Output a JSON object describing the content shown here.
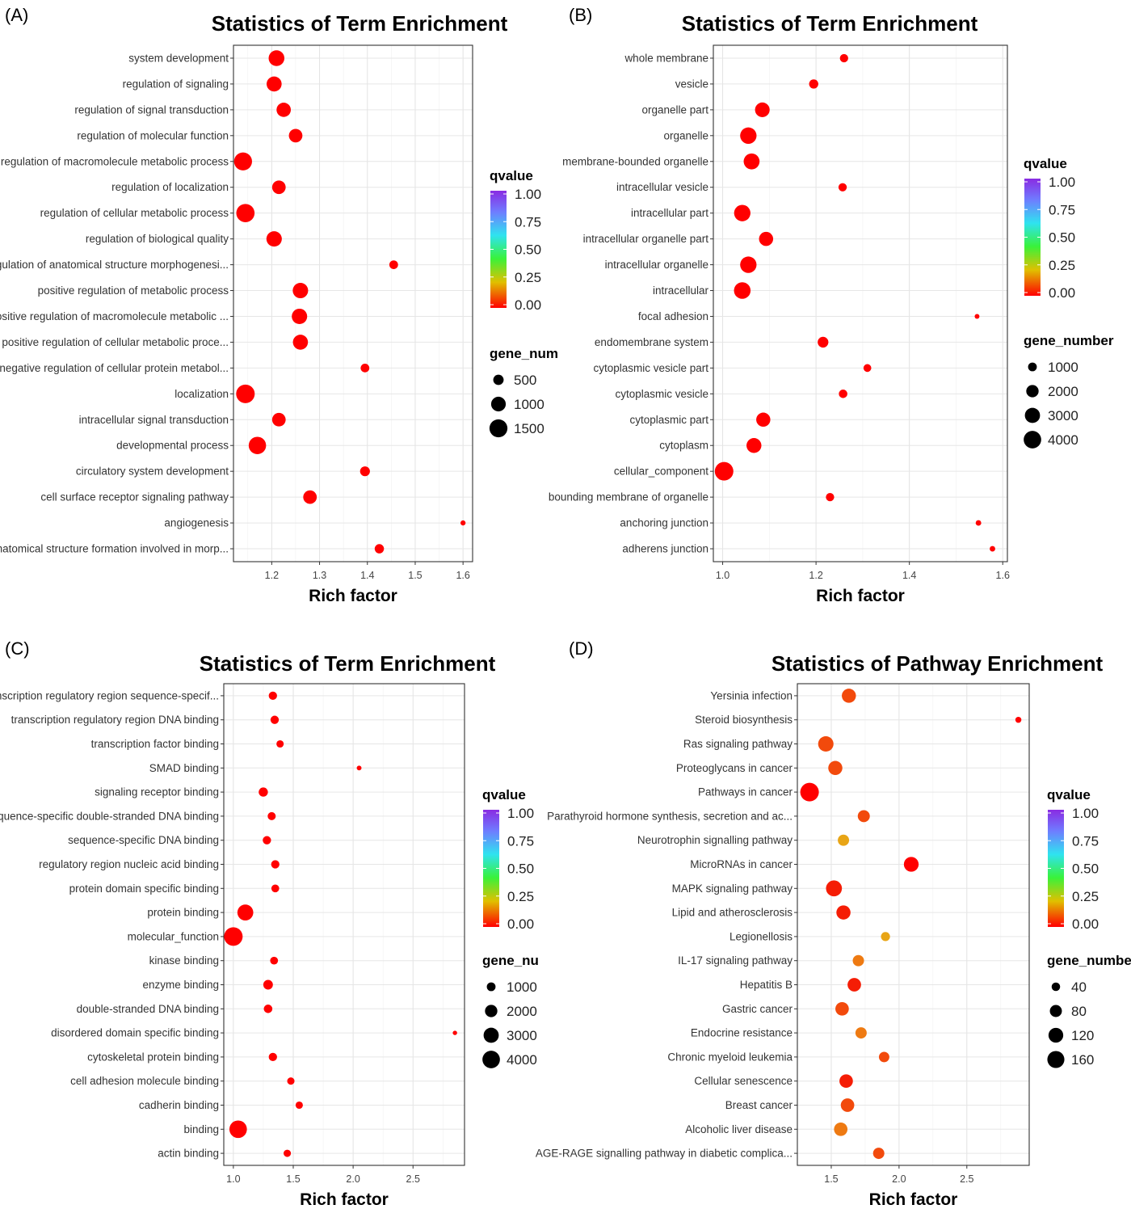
{
  "panels": [
    {
      "label": "(A)",
      "legend_q_title": "qvalue",
      "legend_g_title": "gene_num",
      "chart_data": {
        "type": "scatter",
        "title": "Statistics of Term Enrichment",
        "xlabel": "Rich factor",
        "ylabel": "",
        "xlim": [
          1.12,
          1.62
        ],
        "xticks": [
          1.2,
          1.3,
          1.4,
          1.5,
          1.6
        ],
        "categories": [
          "system development",
          "regulation of signaling",
          "regulation of signal transduction",
          "regulation of molecular function",
          "regulation of macromolecule metabolic process",
          "regulation of localization",
          "regulation of cellular metabolic process",
          "regulation of biological quality",
          "regulation of anatomical structure morphogenesi...",
          "positive regulation of metabolic process",
          "positive regulation of macromolecule metabolic ...",
          "positive regulation of cellular metabolic proce...",
          "negative regulation of cellular protein metabol...",
          "localization",
          "intracellular signal transduction",
          "developmental process",
          "circulatory system development",
          "cell surface receptor signaling pathway",
          "angiogenesis",
          "anatomical structure formation involved in morp..."
        ],
        "x": [
          1.21,
          1.205,
          1.225,
          1.25,
          1.14,
          1.215,
          1.145,
          1.205,
          1.455,
          1.26,
          1.258,
          1.26,
          1.395,
          1.145,
          1.215,
          1.17,
          1.395,
          1.28,
          1.6,
          1.425
        ],
        "gene_number": [
          1150,
          1050,
          950,
          850,
          1500,
          850,
          1550,
          1100,
          350,
          1100,
          1100,
          1050,
          350,
          1600,
          850,
          1400,
          450,
          850,
          120,
          400
        ],
        "qvalue": [
          0,
          0,
          0,
          0,
          0,
          0,
          0,
          0,
          0,
          0,
          0,
          0,
          0,
          0,
          0,
          0,
          0,
          0,
          0,
          0
        ],
        "qvalue_ticks": [
          "1.00",
          "0.75",
          "0.50",
          "0.25",
          "0.00"
        ],
        "gene_ticks": [
          "500",
          "1000",
          "1500"
        ],
        "gene_tick_values": [
          500,
          1000,
          1500
        ],
        "grid": true
      }
    },
    {
      "label": "(B)",
      "legend_q_title": "qvalue",
      "legend_g_title": "gene_number",
      "chart_data": {
        "type": "scatter",
        "title": "Statistics of Term Enrichment",
        "xlabel": "Rich factor",
        "ylabel": "",
        "xlim": [
          0.98,
          1.61
        ],
        "xticks": [
          1.0,
          1.2,
          1.4,
          1.6
        ],
        "xtick_labels": [
          "1.0",
          "1.2",
          "1.4",
          "1.6"
        ],
        "categories": [
          "whole membrane",
          "vesicle",
          "organelle part",
          "organelle",
          "membrane-bounded organelle",
          "intracellular vesicle",
          "intracellular part",
          "intracellular organelle part",
          "intracellular organelle",
          "intracellular",
          "focal adhesion",
          "endomembrane system",
          "cytoplasmic vesicle part",
          "cytoplasmic vesicle",
          "cytoplasmic part",
          "cytoplasm",
          "cellular_component",
          "bounding membrane of organelle",
          "anchoring junction",
          "adherens junction"
        ],
        "x": [
          1.26,
          1.195,
          1.085,
          1.055,
          1.062,
          1.257,
          1.042,
          1.093,
          1.055,
          1.042,
          1.545,
          1.215,
          1.31,
          1.258,
          1.087,
          1.067,
          1.003,
          1.23,
          1.548,
          1.578
        ],
        "gene_number": [
          900,
          1100,
          2800,
          3500,
          3300,
          900,
          3500,
          2600,
          3500,
          3600,
          300,
          1500,
          800,
          950,
          2600,
          2900,
          4500,
          900,
          400,
          400
        ],
        "qvalue": [
          0,
          0,
          0,
          0,
          0,
          0,
          0,
          0,
          0,
          0,
          0,
          0,
          0,
          0,
          0,
          0,
          0,
          0,
          0,
          0
        ],
        "qvalue_ticks": [
          "1.00",
          "0.75",
          "0.50",
          "0.25",
          "0.00"
        ],
        "gene_ticks": [
          "1000",
          "2000",
          "3000",
          "4000"
        ],
        "gene_tick_values": [
          1000,
          2000,
          3000,
          4000
        ],
        "grid": true
      }
    },
    {
      "label": "(C)",
      "legend_q_title": "qvalue",
      "legend_g_title": "gene_nu",
      "chart_data": {
        "type": "scatter",
        "title": "Statistics of Term Enrichment",
        "xlabel": "Rich factor",
        "ylabel": "",
        "xlim": [
          0.92,
          2.93
        ],
        "xticks": [
          1.0,
          1.5,
          2.0,
          2.5
        ],
        "xtick_labels": [
          "1.0",
          "1.5",
          "2.0",
          "2.5"
        ],
        "categories": [
          "transcription regulatory region sequence-specif...",
          "transcription regulatory region DNA binding",
          "transcription factor binding",
          "SMAD binding",
          "signaling receptor binding",
          "sequence-specific double-stranded DNA binding",
          "sequence-specific DNA binding",
          "regulatory region nucleic acid binding",
          "protein domain specific binding",
          "protein binding",
          "molecular_function",
          "kinase binding",
          "enzyme binding",
          "double-stranded DNA binding",
          "disordered domain specific binding",
          "cytoskeletal protein binding",
          "cell adhesion molecule binding",
          "cadherin binding",
          "binding",
          "actin binding"
        ],
        "x": [
          1.33,
          1.345,
          1.39,
          2.05,
          1.25,
          1.32,
          1.28,
          1.35,
          1.35,
          1.1,
          1.0,
          1.34,
          1.29,
          1.29,
          2.85,
          1.33,
          1.48,
          1.55,
          1.04,
          1.45
        ],
        "gene_number": [
          900,
          900,
          700,
          300,
          1100,
          850,
          900,
          900,
          800,
          3300,
          4500,
          800,
          1200,
          950,
          250,
          900,
          700,
          700,
          4000,
          700
        ],
        "qvalue": [
          0,
          0,
          0,
          0,
          0,
          0,
          0,
          0,
          0,
          0,
          0,
          0,
          0,
          0,
          0,
          0,
          0,
          0,
          0,
          0
        ],
        "qvalue_ticks": [
          "1.00",
          "0.75",
          "0.50",
          "0.25",
          "0.00"
        ],
        "gene_ticks": [
          "1000",
          "2000",
          "3000",
          "4000"
        ],
        "gene_tick_values": [
          1000,
          2000,
          3000,
          4000
        ],
        "grid": true
      }
    },
    {
      "label": "(D)",
      "legend_q_title": "qvalue",
      "legend_g_title": "gene_number",
      "chart_data": {
        "type": "scatter",
        "title": "Statistics of Pathway Enrichment",
        "xlabel": "Rich factor",
        "ylabel": "",
        "xlim": [
          1.25,
          2.96
        ],
        "xticks": [
          1.5,
          2.0,
          2.5
        ],
        "xtick_labels": [
          "1.5",
          "2.0",
          "2.5"
        ],
        "categories": [
          "Yersinia infection",
          "Steroid biosynthesis",
          "Ras signaling pathway",
          "Proteoglycans in cancer",
          "Pathways in cancer",
          "Parathyroid hormone synthesis, secretion and ac...",
          "Neurotrophin signalling pathway",
          "MicroRNAs in cancer",
          "MAPK signaling pathway",
          "Lipid and atherosclerosis",
          "Legionellosis",
          "IL-17 signaling pathway",
          "Hepatitis B",
          "Gastric cancer",
          "Endocrine resistance",
          "Chronic myeloid leukemia",
          "Cellular senescence",
          "Breast cancer",
          "Alcoholic liver disease",
          "AGE-RAGE signalling pathway in diabetic complica..."
        ],
        "x": [
          1.63,
          2.88,
          1.46,
          1.53,
          1.34,
          1.74,
          1.59,
          2.09,
          1.52,
          1.59,
          1.9,
          1.7,
          1.67,
          1.58,
          1.72,
          1.89,
          1.61,
          1.62,
          1.57,
          1.85
        ],
        "gene_number": [
          110,
          20,
          130,
          110,
          190,
          80,
          70,
          120,
          140,
          110,
          45,
          70,
          100,
          100,
          70,
          60,
          100,
          100,
          100,
          70
        ],
        "qvalue": [
          0.05,
          0.0,
          0.08,
          0.05,
          0.0,
          0.05,
          0.15,
          0.0,
          0.03,
          0.04,
          0.15,
          0.09,
          0.02,
          0.08,
          0.09,
          0.05,
          0.04,
          0.06,
          0.1,
          0.05
        ],
        "qvalue_ticks": [
          "1.00",
          "0.75",
          "0.50",
          "0.25",
          "0.00"
        ],
        "gene_ticks": [
          "40",
          "80",
          "120",
          "160"
        ],
        "gene_tick_values": [
          40,
          80,
          120,
          160
        ],
        "grid": true
      }
    }
  ]
}
